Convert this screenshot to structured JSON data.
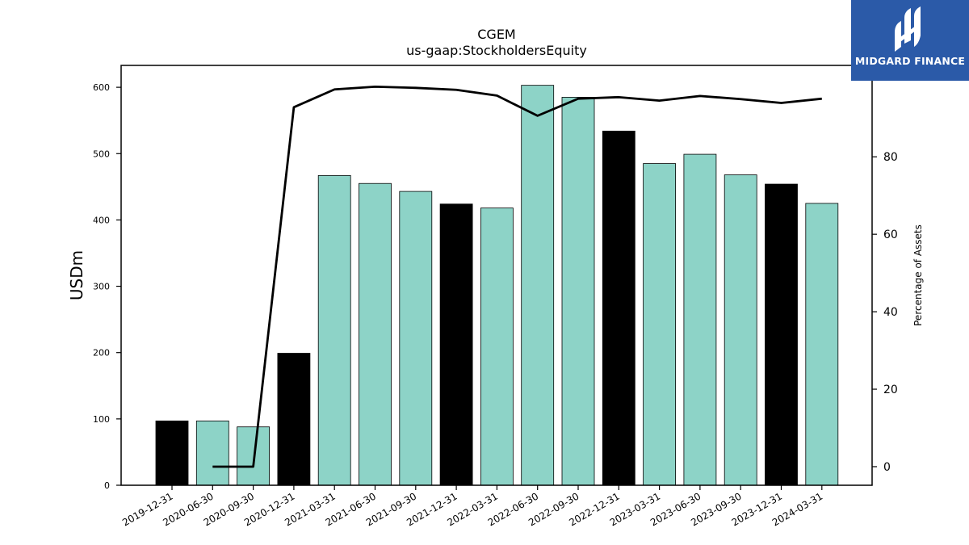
{
  "chart_data": {
    "type": "bar",
    "title": "CGEM",
    "subtitle": "us-gaap:StockholdersEquity",
    "ylabel": "USDm",
    "y2label": "Percentage of Assets",
    "ylim": [
      0,
      633
    ],
    "y2lim": [
      -4.8,
      103.6
    ],
    "yticks": [
      0,
      100,
      200,
      300,
      400,
      500,
      600
    ],
    "y2ticks": [
      0,
      20,
      40,
      60,
      80
    ],
    "categories": [
      "2019-12-31",
      "2020-06-30",
      "2020-09-30",
      "2020-12-31",
      "2021-03-31",
      "2021-06-30",
      "2021-09-30",
      "2021-12-31",
      "2022-03-31",
      "2022-06-30",
      "2022-09-30",
      "2022-12-31",
      "2023-03-31",
      "2023-06-30",
      "2023-09-30",
      "2023-12-31",
      "2024-03-31"
    ],
    "series": [
      {
        "type": "bar",
        "values": [
          97,
          97,
          88,
          199,
          467,
          455,
          443,
          424,
          418,
          603,
          585,
          534,
          485,
          499,
          468,
          454,
          425
        ],
        "colors": [
          "#000000",
          "#8dd3c7",
          "#8dd3c7",
          "#000000",
          "#8dd3c7",
          "#8dd3c7",
          "#8dd3c7",
          "#000000",
          "#8dd3c7",
          "#8dd3c7",
          "#8dd3c7",
          "#000000",
          "#8dd3c7",
          "#8dd3c7",
          "#8dd3c7",
          "#000000",
          "#8dd3c7"
        ]
      },
      {
        "type": "line",
        "axis": "right",
        "x": [
          "2020-06-30",
          "2020-09-30",
          "2020-12-31",
          "2021-03-31",
          "2021-06-30",
          "2021-09-30",
          "2021-12-31",
          "2022-03-31",
          "2022-06-30",
          "2022-09-30",
          "2022-12-31",
          "2023-03-31",
          "2023-06-30",
          "2023-09-30",
          "2023-12-31",
          "2024-03-31"
        ],
        "values": [
          0,
          0,
          92.8,
          97.4,
          98.1,
          97.8,
          97.3,
          95.8,
          90.6,
          95.0,
          95.4,
          94.5,
          95.7,
          94.9,
          93.9,
          95.0
        ],
        "color": "#000000"
      }
    ],
    "grid": false
  },
  "logo": {
    "text": "MIDGARD FINANCE",
    "bg": "#2b5aa8"
  }
}
